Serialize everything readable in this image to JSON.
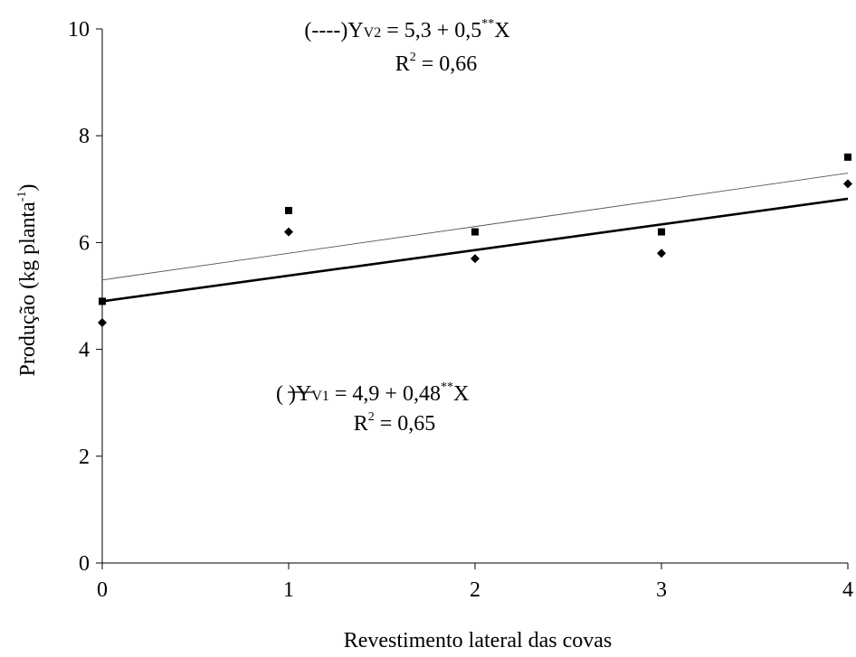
{
  "chart_data": {
    "type": "scatter",
    "xlabel": "Revestimento lateral das covas",
    "ylabel_main": "Produção (kg planta",
    "ylabel_sup": "-1",
    "ylabel_close": ")",
    "xlim": [
      0,
      4
    ],
    "ylim": [
      0,
      10
    ],
    "x_ticks": [
      "0",
      "1",
      "2",
      "3",
      "4"
    ],
    "y_ticks": [
      "0",
      "2",
      "4",
      "6",
      "8",
      "10"
    ],
    "grid": false,
    "series": [
      {
        "key": "V2",
        "marker": "square",
        "x": [
          0,
          1,
          2,
          3,
          4
        ],
        "y": [
          4.9,
          6.6,
          6.2,
          6.2,
          7.6
        ],
        "fit": {
          "intercept": 5.3,
          "slope": 0.5,
          "style": "thin"
        }
      },
      {
        "key": "V1",
        "marker": "diamond",
        "x": [
          0,
          1,
          2,
          3,
          4
        ],
        "y": [
          4.5,
          6.2,
          5.7,
          5.8,
          7.1
        ],
        "fit": {
          "intercept": 4.9,
          "slope": 0.48,
          "style": "bold"
        }
      }
    ],
    "annotations": {
      "v2_equation": {
        "prefix": "(----)Y",
        "sub": "V2",
        "body": " = 5,3 + 0,5",
        "sup": "**",
        "suffix": "X"
      },
      "v2_r2": {
        "lead": "R",
        "sup": "2",
        "tail": " = 0,66"
      },
      "v1_equation": {
        "prefix": "(",
        "mid": ")Y",
        "sub": "V1",
        "body": " = 4,9 + 0,48",
        "sup": "**",
        "suffix": "X"
      },
      "v1_r2": {
        "lead": "R",
        "sup": "2",
        "tail": " = 0,65"
      }
    }
  }
}
